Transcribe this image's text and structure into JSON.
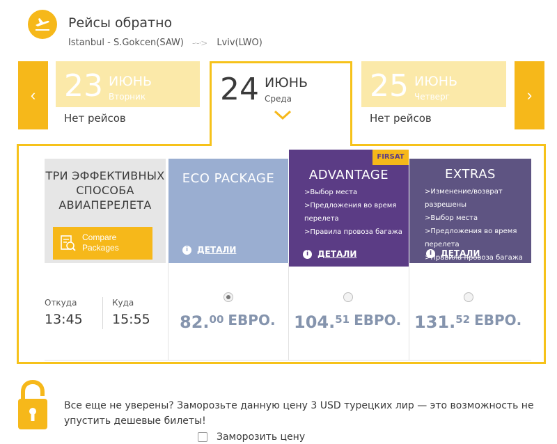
{
  "header": {
    "title": "Рейсы обратно",
    "route_from": "Istanbul - S.Gokcen(SAW)",
    "route_to": "Lviv(LWO)",
    "route_arrow": "-·-·>"
  },
  "date_nav": {
    "prev_label": "‹",
    "next_label": "›",
    "dates": [
      {
        "day": "23",
        "month": "ИЮНЬ",
        "weekday": "Вторник",
        "status": "Нет рейсов"
      },
      {
        "day": "24",
        "month": "ИЮНЬ",
        "weekday": "Среда",
        "status": ""
      },
      {
        "day": "25",
        "month": "ИЮНЬ",
        "weekday": "Четверг",
        "status": "Нет рейсов"
      }
    ]
  },
  "info": {
    "title": "ТРИ ЭФФЕКТИВНЫХ СПОСОБА АВИАПЕРЕЛЕТА",
    "compare_label_1": "Compare",
    "compare_label_2": "Packages"
  },
  "flight": {
    "from_label": "Откуда",
    "from_time": "13:45",
    "to_label": "Куда",
    "to_time": "15:55"
  },
  "packages": [
    {
      "name": "ECO PACKAGE",
      "features": [],
      "details_label": "ДЕТАЛИ",
      "price_main": "82.",
      "price_cents": "00",
      "currency": "ЕВРО.",
      "selected": true,
      "color": "#9aaed1"
    },
    {
      "name": "ADVANTAGE",
      "badge": "FIRSAT",
      "features": [
        ">Выбор места",
        ">Предложения во время перелета",
        ">Правила провоза багажа"
      ],
      "details_label": "ДЕТАЛИ",
      "price_main": "104.",
      "price_cents": "51",
      "currency": "ЕВРО.",
      "selected": false,
      "color": "#5b3c85"
    },
    {
      "name": "EXTRAS",
      "features": [
        ">Изменение/возврат разрешены",
        ">Выбор места",
        ">Предложения во время перелета",
        ">Правила провоза багажа"
      ],
      "details_label": "ДЕТАЛИ",
      "price_main": "131.",
      "price_cents": "52",
      "currency": "ЕВРО.",
      "selected": false,
      "color": "#5e5482"
    }
  ],
  "freeze": {
    "text": "Все еще не уверены? Заморозьте данную цену 3 USD турецких лир — это возможность не упустить дешевые билеты!",
    "checkbox_label": "Заморозить цену"
  },
  "colors": {
    "accent": "#f6b81a",
    "price": "#8594ad"
  }
}
